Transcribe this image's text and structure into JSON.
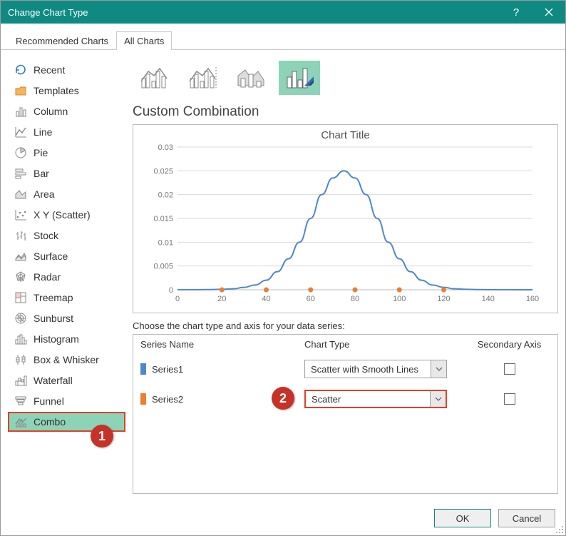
{
  "window": {
    "title": "Change Chart Type"
  },
  "tabs": {
    "recommended": "Recommended Charts",
    "all": "All Charts"
  },
  "sidebar": {
    "items": [
      {
        "label": "Recent",
        "icon": "recent"
      },
      {
        "label": "Templates",
        "icon": "templates"
      },
      {
        "label": "Column",
        "icon": "column"
      },
      {
        "label": "Line",
        "icon": "line"
      },
      {
        "label": "Pie",
        "icon": "pie"
      },
      {
        "label": "Bar",
        "icon": "bar"
      },
      {
        "label": "Area",
        "icon": "area"
      },
      {
        "label": "X Y (Scatter)",
        "icon": "scatter"
      },
      {
        "label": "Stock",
        "icon": "stock"
      },
      {
        "label": "Surface",
        "icon": "surface"
      },
      {
        "label": "Radar",
        "icon": "radar"
      },
      {
        "label": "Treemap",
        "icon": "treemap"
      },
      {
        "label": "Sunburst",
        "icon": "sunburst"
      },
      {
        "label": "Histogram",
        "icon": "histogram"
      },
      {
        "label": "Box & Whisker",
        "icon": "box"
      },
      {
        "label": "Waterfall",
        "icon": "waterfall"
      },
      {
        "label": "Funnel",
        "icon": "funnel"
      },
      {
        "label": "Combo",
        "icon": "combo"
      }
    ]
  },
  "main": {
    "title": "Custom Combination",
    "preview": {
      "chart_title": "Chart Title",
      "x": {
        "min": 0,
        "max": 160,
        "step": 20
      },
      "y": {
        "min": 0,
        "max": 0.03,
        "step": 0.005
      },
      "line_color": "#4f87c9",
      "point_color": "#ed7d31",
      "grid_color": "#d9d9d9",
      "axis_text_color": "#777",
      "line_series": [
        [
          0,
          1e-05
        ],
        [
          5,
          1e-05
        ],
        [
          10,
          2e-05
        ],
        [
          15,
          4e-05
        ],
        [
          20,
          0.0001
        ],
        [
          25,
          0.0002
        ],
        [
          30,
          0.0005
        ],
        [
          35,
          0.001
        ],
        [
          40,
          0.002
        ],
        [
          45,
          0.0038
        ],
        [
          50,
          0.0065
        ],
        [
          55,
          0.01
        ],
        [
          60,
          0.015
        ],
        [
          65,
          0.02
        ],
        [
          70,
          0.0235
        ],
        [
          75,
          0.025
        ],
        [
          80,
          0.0235
        ],
        [
          85,
          0.02
        ],
        [
          90,
          0.015
        ],
        [
          95,
          0.01
        ],
        [
          100,
          0.0065
        ],
        [
          105,
          0.0038
        ],
        [
          110,
          0.002
        ],
        [
          115,
          0.001
        ],
        [
          120,
          0.0005
        ],
        [
          125,
          0.0002
        ],
        [
          130,
          0.0001
        ],
        [
          135,
          4e-05
        ],
        [
          140,
          2e-05
        ],
        [
          145,
          1e-05
        ],
        [
          150,
          1e-05
        ],
        [
          155,
          5e-06
        ],
        [
          160,
          5e-06
        ]
      ],
      "points": [
        20,
        40,
        60,
        80,
        100,
        120
      ]
    },
    "series_section_label": "Choose the chart type and axis for your data series:",
    "headers": {
      "name": "Series Name",
      "type": "Chart Type",
      "axis": "Secondary Axis"
    },
    "series": [
      {
        "name": "Series1",
        "color": "#4f87c9",
        "type": "Scatter with Smooth Lines"
      },
      {
        "name": "Series2",
        "color": "#ed7d31",
        "type": "Scatter"
      }
    ]
  },
  "footer": {
    "ok": "OK",
    "cancel": "Cancel"
  },
  "callouts": {
    "c1": "1",
    "c2": "2"
  }
}
